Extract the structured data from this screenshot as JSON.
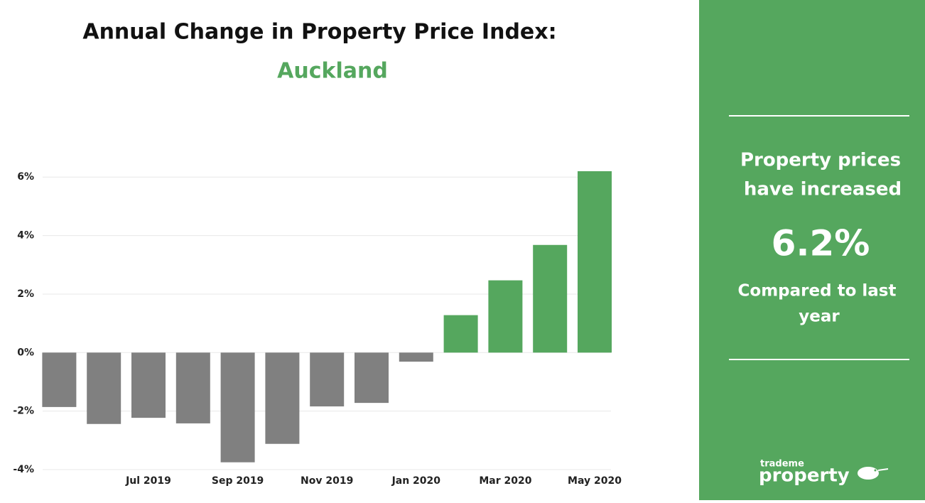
{
  "chart_data": {
    "type": "bar",
    "title": "Annual Change in Property Price Index:",
    "subtitle": "Auckland",
    "categories": [
      null,
      null,
      "Jul 2019",
      null,
      "Sep 2019",
      null,
      "Nov 2019",
      null,
      "Jan 2020",
      null,
      "Mar 2020",
      null,
      "May 2020"
    ],
    "values": [
      -1.86,
      -2.44,
      -2.23,
      -2.42,
      -3.75,
      -3.12,
      -1.84,
      -1.72,
      -0.31,
      1.28,
      2.47,
      3.68,
      6.2
    ],
    "positive_color": "#55a75e",
    "negative_color": "#808080",
    "ylim": [
      -4,
      6.2
    ],
    "yticks": [
      {
        "value": -4,
        "label": "-4%"
      },
      {
        "value": -2,
        "label": "-2%"
      },
      {
        "value": 0,
        "label": "0%"
      },
      {
        "value": 2,
        "label": "2%"
      },
      {
        "value": 4,
        "label": "4%"
      },
      {
        "value": 6,
        "label": "6%"
      }
    ],
    "grid": true
  },
  "panel": {
    "headline": [
      "Property prices",
      "have increased"
    ],
    "value_text": "6.2%",
    "caption": [
      "Compared to last",
      "year"
    ],
    "logo": [
      "trademe",
      "property"
    ]
  }
}
